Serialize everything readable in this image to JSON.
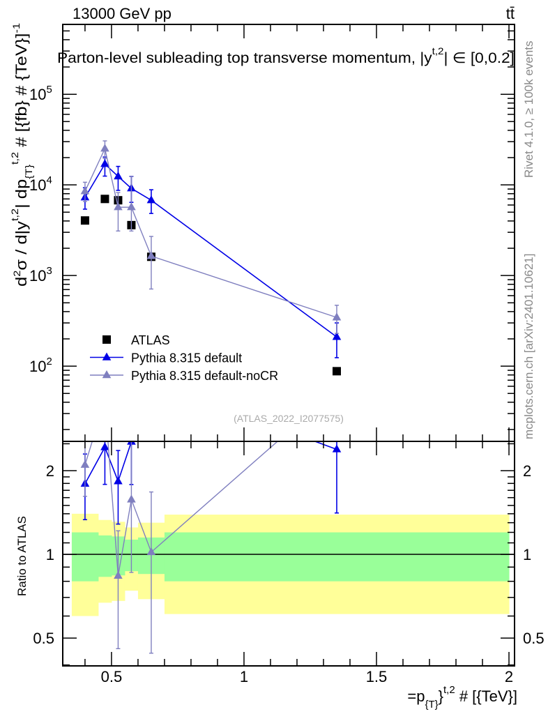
{
  "header": {
    "left": "13000 GeV pp",
    "right": "tt̄"
  },
  "side_text": {
    "top": "Rivet 4.1.0, ≥ 100k events",
    "bottom": "mcplots.cern.ch [arXiv:2401.10621]"
  },
  "watermark": "(ATLAS_2022_I2077575)",
  "colors": {
    "atlas": "#000000",
    "default": "#0000e6",
    "nocr": "#7f7fbf",
    "band_inner": "#99ff99",
    "band_outer": "#ffff99"
  },
  "chart_data": {
    "type": "scatter",
    "title": "Parton-level subleading top transverse momentum, |y^{t,2}| ∈ [0,0.2]",
    "title_parts": {
      "main": "Parton-level subleading top transverse momentum, |",
      "sup": "t,2",
      "y": "y",
      "tail": "| ∈ [0,0.2]"
    },
    "ylabel": {
      "a": "d",
      "a_sup": "2",
      "b": "σ / d|y",
      "b_sup": "t,2",
      "c": "| dp",
      "c_sub": "{T}",
      "c_sup": "t,2",
      "d": " # [{fb} # {TeV}]",
      "d_sup": "-1"
    },
    "xlabel": {
      "a": "=p",
      "a_sub": "{T}",
      "b": "}",
      "b_sup": "t,2",
      "c": " # [{TeV}]"
    },
    "ratio_ylabel": "Ratio to ATLAS",
    "xlim": [
      0.316,
      2.021
    ],
    "ylim": [
      14.8,
      590000
    ],
    "ratio_ylim": [
      0.397,
      2.55
    ],
    "yscale": "log",
    "x_ticks": [
      0.5,
      1,
      1.5,
      2
    ],
    "x_tick_labels": [
      "0.5",
      "1",
      "1.5",
      "2"
    ],
    "y_ticks": [
      100,
      1000,
      10000,
      100000
    ],
    "y_tick_exponents": [
      "2",
      "3",
      "4",
      "5"
    ],
    "ratio_ticks": [
      0.5,
      1,
      2
    ],
    "ratio_tick_labels": [
      "0.5",
      "1",
      "2"
    ],
    "bin_edges": [
      0.35,
      0.45,
      0.5,
      0.55,
      0.6,
      0.7,
      2.0
    ],
    "x": [
      0.4,
      0.475,
      0.525,
      0.575,
      0.65,
      1.35
    ],
    "band_inner": [
      [
        0.8,
        1.2
      ],
      [
        0.83,
        1.17
      ],
      [
        0.84,
        1.16
      ],
      [
        0.87,
        1.13
      ],
      [
        0.85,
        1.15
      ],
      [
        0.8,
        1.2
      ]
    ],
    "band_outer": [
      [
        0.6,
        1.4
      ],
      [
        0.67,
        1.33
      ],
      [
        0.68,
        1.31
      ],
      [
        0.74,
        1.25
      ],
      [
        0.69,
        1.3
      ],
      [
        0.61,
        1.39
      ]
    ],
    "legend_position": "bottom-left",
    "series": [
      {
        "name": "ATLAS",
        "key": "atlas",
        "marker": "square",
        "values": [
          4050,
          7000,
          6770,
          3600,
          1610,
          88
        ]
      },
      {
        "name": "Pythia 8.315 default",
        "key": "default",
        "marker": "triangle",
        "values": [
          7270,
          17000,
          12400,
          9150,
          6770,
          210
        ],
        "err_low": [
          5400,
          12500,
          8700,
          6420,
          4840,
          124
        ],
        "err_high": [
          9300,
          20300,
          16000,
          12400,
          8840,
          300
        ]
      },
      {
        "name": "Pythia 8.315 default-noCR",
        "key": "nocr",
        "marker": "triangle",
        "values": [
          8500,
          25100,
          5670,
          5670,
          1640,
          345
        ],
        "err_low": [
          6550,
          19600,
          3100,
          3100,
          710,
          230
        ],
        "err_high": [
          10700,
          30600,
          8230,
          12400,
          2700,
          470
        ]
      }
    ]
  }
}
